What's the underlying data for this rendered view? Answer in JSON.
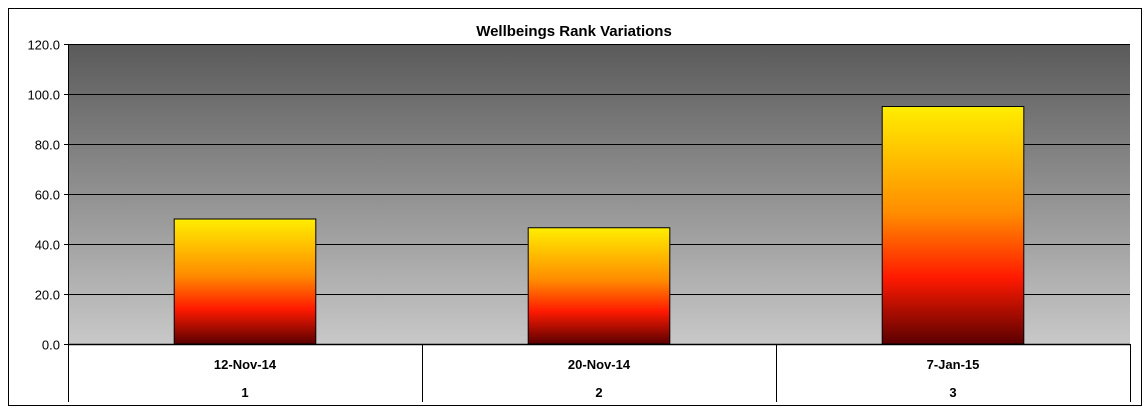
{
  "chart_data": {
    "type": "bar",
    "title": "Wellbeings Rank Variations",
    "categories": [
      "12-Nov-14",
      "20-Nov-14",
      "7-Jan-15"
    ],
    "category_sublabels": [
      "1",
      "2",
      "3"
    ],
    "values": [
      50.0,
      46.5,
      95.0
    ],
    "ylim": [
      0,
      120
    ],
    "yticks": [
      "0.0",
      "20.0",
      "40.0",
      "60.0",
      "80.0",
      "100.0",
      "120.0"
    ],
    "xlabel": "",
    "ylabel": "",
    "grid": true,
    "legend": "none",
    "colors": {
      "plot_top": "#5a5a5a",
      "plot_bottom": "#c8c8c8",
      "bar_top": "#ffee00",
      "bar_mid_orange": "#ff8c00",
      "bar_mid_red": "#ff1a00",
      "bar_bottom": "#5a0000"
    }
  }
}
